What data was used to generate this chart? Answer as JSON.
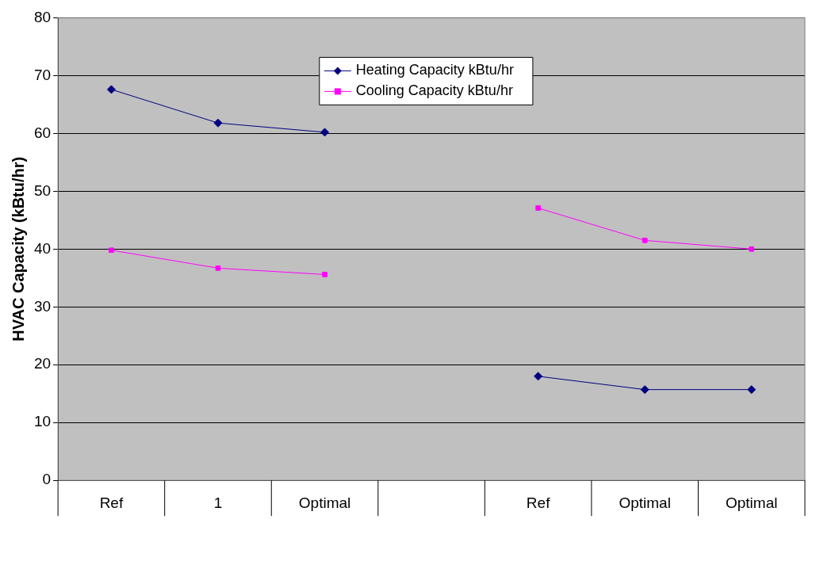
{
  "chart_data": {
    "type": "line",
    "ylabel": "HVAC Capacity (kBtu/hr)",
    "categories": [
      "Ref",
      "1",
      "Optimal",
      null,
      "Ref",
      "Optimal",
      "Optimal"
    ],
    "series": [
      {
        "name": "Heating Capacity kBtu/hr",
        "color": "#000080",
        "marker": "diamond",
        "values": [
          67.6,
          61.8,
          60.2,
          null,
          18.0,
          15.7,
          15.7
        ]
      },
      {
        "name": "Cooling Capacity kBtu/hr",
        "color": "#ff00ff",
        "marker": "square",
        "values": [
          39.8,
          36.7,
          35.6,
          null,
          47.1,
          41.5,
          40.0
        ]
      }
    ],
    "ylim": [
      0,
      80
    ],
    "yticks": [
      0,
      10,
      20,
      30,
      40,
      50,
      60,
      70,
      80
    ],
    "grid": "y",
    "legend": "top",
    "line_style": "solid"
  }
}
